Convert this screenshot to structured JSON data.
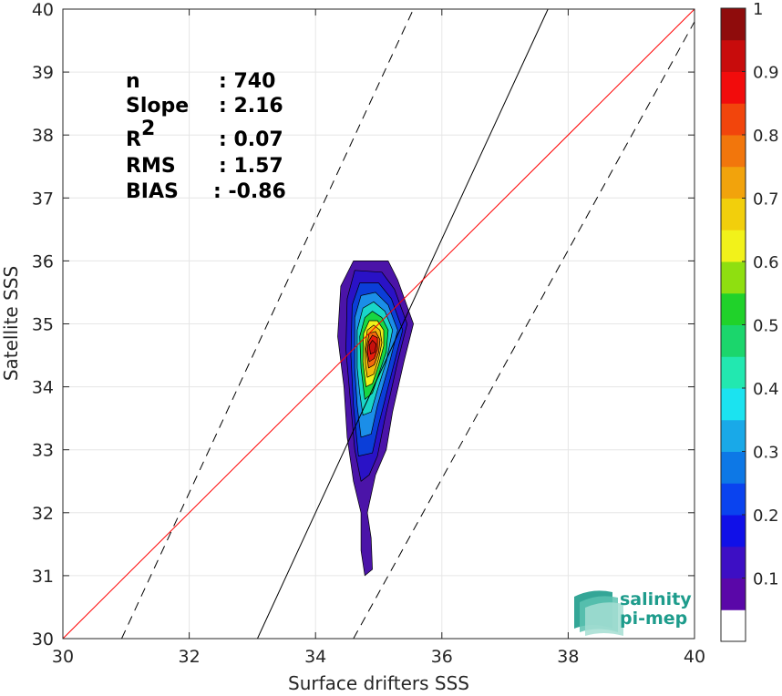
{
  "chart_data": {
    "type": "contour",
    "xlabel": "Surface drifters SSS",
    "ylabel": "Satellite SSS",
    "xlim": [
      30,
      40
    ],
    "ylim": [
      30,
      40
    ],
    "xticks": [
      30,
      32,
      34,
      36,
      38,
      40
    ],
    "yticks": [
      30,
      31,
      32,
      33,
      34,
      35,
      36,
      37,
      38,
      39,
      40
    ],
    "grid": true,
    "stats": [
      {
        "key": "n",
        "value": ": 740"
      },
      {
        "key": "Slope",
        "value": ": 2.16"
      },
      {
        "key": "R",
        "sup": "2",
        "value": ": 0.07"
      },
      {
        "key": "RMS",
        "value": ": 1.57"
      },
      {
        "key": "BIAS",
        "value": ": -0.86"
      }
    ],
    "lines": {
      "identity": {
        "color": "#ff0000",
        "points": [
          [
            30,
            30
          ],
          [
            40,
            40
          ]
        ]
      },
      "regression": {
        "color": "#000000",
        "points": [
          [
            33.08,
            30
          ],
          [
            37.68,
            40
          ]
        ]
      },
      "regression_upper": {
        "color": "#000000",
        "dash": true,
        "points": [
          [
            30.93,
            30
          ],
          [
            35.55,
            40
          ]
        ]
      },
      "regression_lower": {
        "color": "#000000",
        "dash": true,
        "points": [
          [
            34.6,
            30
          ],
          [
            40,
            39.8
          ]
        ]
      }
    },
    "density_levels": [
      {
        "level": 0.05,
        "color": "#4b14a8",
        "poly": [
          [
            34.78,
            31.0
          ],
          [
            34.9,
            31.1
          ],
          [
            34.88,
            31.6
          ],
          [
            34.82,
            32.0
          ],
          [
            34.95,
            32.6
          ],
          [
            35.12,
            33.0
          ],
          [
            35.22,
            33.6
          ],
          [
            35.4,
            34.4
          ],
          [
            35.55,
            35.0
          ],
          [
            35.3,
            35.7
          ],
          [
            35.15,
            36.0
          ],
          [
            34.6,
            36.0
          ],
          [
            34.4,
            35.6
          ],
          [
            34.35,
            34.8
          ],
          [
            34.45,
            34.0
          ],
          [
            34.5,
            33.2
          ],
          [
            34.6,
            32.5
          ],
          [
            34.72,
            32.0
          ],
          [
            34.72,
            31.4
          ]
        ]
      },
      {
        "level": 0.1,
        "color": "#2a12c6",
        "poly": [
          [
            34.72,
            32.5
          ],
          [
            34.85,
            32.6
          ],
          [
            34.98,
            32.9
          ],
          [
            35.1,
            33.5
          ],
          [
            35.3,
            34.4
          ],
          [
            35.45,
            35.0
          ],
          [
            35.25,
            35.55
          ],
          [
            35.05,
            35.82
          ],
          [
            34.62,
            35.85
          ],
          [
            34.5,
            35.4
          ],
          [
            34.48,
            34.6
          ],
          [
            34.55,
            33.8
          ],
          [
            34.62,
            33.0
          ]
        ]
      },
      {
        "level": 0.2,
        "color": "#0b3ed8",
        "poly": [
          [
            34.68,
            32.9
          ],
          [
            34.9,
            32.95
          ],
          [
            35.0,
            33.4
          ],
          [
            35.2,
            34.2
          ],
          [
            35.38,
            34.9
          ],
          [
            35.2,
            35.4
          ],
          [
            35.0,
            35.65
          ],
          [
            34.7,
            35.65
          ],
          [
            34.58,
            35.3
          ],
          [
            34.56,
            34.5
          ],
          [
            34.6,
            33.7
          ]
        ]
      },
      {
        "level": 0.3,
        "color": "#1b8ee8",
        "poly": [
          [
            34.72,
            33.2
          ],
          [
            34.88,
            33.25
          ],
          [
            34.98,
            33.7
          ],
          [
            35.15,
            34.3
          ],
          [
            35.3,
            34.9
          ],
          [
            35.15,
            35.3
          ],
          [
            34.95,
            35.5
          ],
          [
            34.72,
            35.45
          ],
          [
            34.62,
            35.1
          ],
          [
            34.62,
            34.3
          ],
          [
            34.66,
            33.7
          ]
        ]
      },
      {
        "level": 0.4,
        "color": "#19d6c8",
        "poly": [
          [
            34.75,
            33.55
          ],
          [
            34.88,
            33.6
          ],
          [
            34.98,
            33.95
          ],
          [
            35.12,
            34.4
          ],
          [
            35.22,
            34.9
          ],
          [
            35.1,
            35.2
          ],
          [
            34.92,
            35.35
          ],
          [
            34.75,
            35.25
          ],
          [
            34.66,
            34.9
          ],
          [
            34.66,
            34.3
          ],
          [
            34.7,
            33.9
          ]
        ]
      },
      {
        "level": 0.5,
        "color": "#17d642",
        "poly": [
          [
            34.78,
            33.8
          ],
          [
            34.9,
            33.9
          ],
          [
            35.0,
            34.2
          ],
          [
            35.12,
            34.55
          ],
          [
            35.15,
            34.9
          ],
          [
            35.05,
            35.1
          ],
          [
            34.9,
            35.2
          ],
          [
            34.78,
            35.1
          ],
          [
            34.7,
            34.8
          ],
          [
            34.72,
            34.3
          ]
        ]
      },
      {
        "level": 0.6,
        "color": "#eef21a",
        "poly": [
          [
            34.8,
            34.0
          ],
          [
            34.9,
            34.05
          ],
          [
            35.0,
            34.35
          ],
          [
            35.08,
            34.65
          ],
          [
            35.08,
            34.9
          ],
          [
            34.98,
            35.05
          ],
          [
            34.85,
            35.05
          ],
          [
            34.76,
            34.85
          ],
          [
            34.75,
            34.4
          ]
        ]
      },
      {
        "level": 0.7,
        "color": "#f2b90c",
        "poly": [
          [
            34.82,
            34.15
          ],
          [
            34.92,
            34.2
          ],
          [
            35.0,
            34.45
          ],
          [
            35.05,
            34.7
          ],
          [
            35.02,
            34.9
          ],
          [
            34.92,
            34.98
          ],
          [
            34.82,
            34.9
          ],
          [
            34.78,
            34.6
          ],
          [
            34.79,
            34.35
          ]
        ]
      },
      {
        "level": 0.8,
        "color": "#f26a0c",
        "poly": [
          [
            34.84,
            34.3
          ],
          [
            34.93,
            34.35
          ],
          [
            35.0,
            34.55
          ],
          [
            35.02,
            34.75
          ],
          [
            34.95,
            34.88
          ],
          [
            34.85,
            34.85
          ],
          [
            34.8,
            34.6
          ]
        ]
      },
      {
        "level": 0.9,
        "color": "#e81c0c",
        "poly": [
          [
            34.85,
            34.4
          ],
          [
            34.93,
            34.45
          ],
          [
            34.98,
            34.6
          ],
          [
            34.98,
            34.78
          ],
          [
            34.9,
            34.82
          ],
          [
            34.84,
            34.72
          ],
          [
            34.82,
            34.55
          ]
        ]
      },
      {
        "level": 1.0,
        "color": "#c8100c",
        "poly": [
          [
            34.87,
            34.52
          ],
          [
            34.94,
            34.55
          ],
          [
            34.96,
            34.68
          ],
          [
            34.9,
            34.74
          ],
          [
            34.85,
            34.66
          ]
        ]
      }
    ],
    "colorbar": {
      "range": [
        0,
        1
      ],
      "ticks": [
        0.1,
        0.2,
        0.3,
        0.4,
        0.5,
        0.6,
        0.7,
        0.8,
        0.9,
        1
      ],
      "tick_labels": [
        "0.1",
        "0.2",
        "0.3",
        "0.4",
        "0.5",
        "0.6",
        "0.7",
        "0.8",
        "0.9",
        "1"
      ],
      "colors": [
        "#ffffff",
        "#5a07a8",
        "#3d0fc4",
        "#1010e8",
        "#0a43ef",
        "#0d78e6",
        "#19a9e8",
        "#1be3f0",
        "#22e8b0",
        "#1bd66c",
        "#20d22a",
        "#8fdf10",
        "#f2f21a",
        "#f2cf0c",
        "#f2a30c",
        "#f2760c",
        "#f2450c",
        "#f20c0c",
        "#c80c0c",
        "#8f0c0c"
      ]
    }
  },
  "logo": {
    "line1": "salinity",
    "line2": "pi-mep"
  }
}
